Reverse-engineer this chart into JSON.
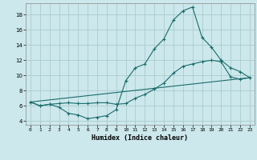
{
  "xlabel": "Humidex (Indice chaleur)",
  "background_color": "#cce8ec",
  "grid_color": "#aacccc",
  "line_color": "#1a6b6b",
  "xlim": [
    -0.5,
    23.5
  ],
  "ylim": [
    3.5,
    19.5
  ],
  "xticks": [
    0,
    1,
    2,
    3,
    4,
    5,
    6,
    7,
    8,
    9,
    10,
    11,
    12,
    13,
    14,
    15,
    16,
    17,
    18,
    19,
    20,
    21,
    22,
    23
  ],
  "yticks": [
    4,
    6,
    8,
    10,
    12,
    14,
    16,
    18
  ],
  "series1_x": [
    0,
    1,
    2,
    3,
    4,
    5,
    6,
    7,
    8,
    9,
    10,
    11,
    12,
    13,
    14,
    15,
    16,
    17,
    18,
    19,
    20,
    21,
    22,
    23
  ],
  "series1_y": [
    6.5,
    6.0,
    6.2,
    5.8,
    5.0,
    4.8,
    4.3,
    4.5,
    4.7,
    5.5,
    9.3,
    11.0,
    11.5,
    13.5,
    14.8,
    17.3,
    18.5,
    19.0,
    15.0,
    13.7,
    12.0,
    11.0,
    10.5,
    9.7
  ],
  "series2_x": [
    0,
    1,
    2,
    3,
    4,
    5,
    6,
    7,
    8,
    9,
    10,
    11,
    12,
    13,
    14,
    15,
    16,
    17,
    18,
    19,
    20,
    21,
    22,
    23
  ],
  "series2_y": [
    6.5,
    6.0,
    6.2,
    6.3,
    6.4,
    6.3,
    6.3,
    6.4,
    6.4,
    6.2,
    6.3,
    7.0,
    7.5,
    8.2,
    9.0,
    10.3,
    11.2,
    11.5,
    11.8,
    12.0,
    11.8,
    9.8,
    9.5,
    9.7
  ],
  "series3_x": [
    0,
    23
  ],
  "series3_y": [
    6.5,
    9.7
  ]
}
